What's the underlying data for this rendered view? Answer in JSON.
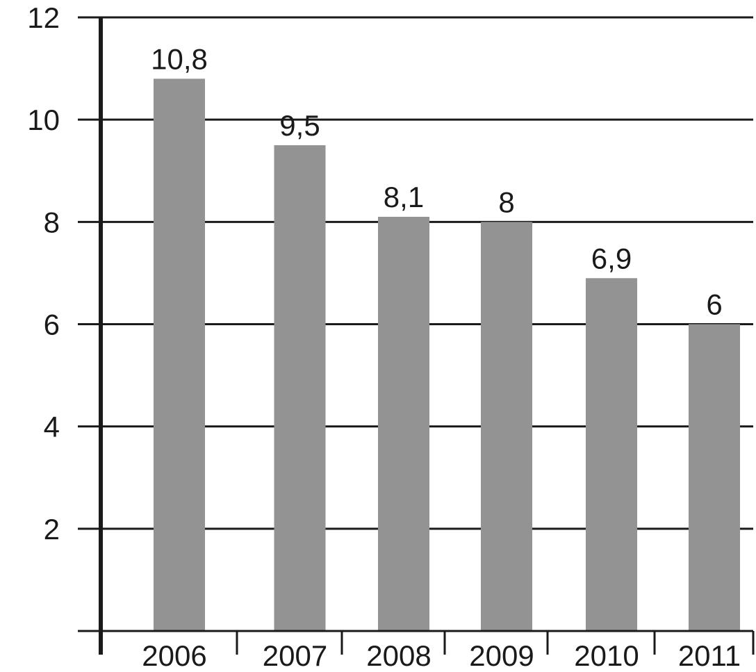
{
  "chart_data": {
    "type": "bar",
    "title": "",
    "xlabel": "",
    "ylabel": "",
    "categories": [
      "2006",
      "2007",
      "2008",
      "2009",
      "2010",
      "2011"
    ],
    "values": [
      10.8,
      9.5,
      8.1,
      8,
      6.9,
      6
    ],
    "value_labels": [
      "10,8",
      "9,5",
      "8,1",
      "8",
      "6,9",
      "6"
    ],
    "ylim": [
      0,
      12
    ],
    "y_ticks": [
      2,
      4,
      6,
      8,
      10,
      12
    ],
    "y_tick_labels": [
      "2",
      "4",
      "6",
      "8",
      "10",
      "12"
    ],
    "grid": true,
    "legend": "none",
    "colors": {
      "bar": "#939393",
      "grid": "#1a1a1a",
      "axis": "#1a1a1a",
      "text": "#1a1a1a"
    }
  }
}
